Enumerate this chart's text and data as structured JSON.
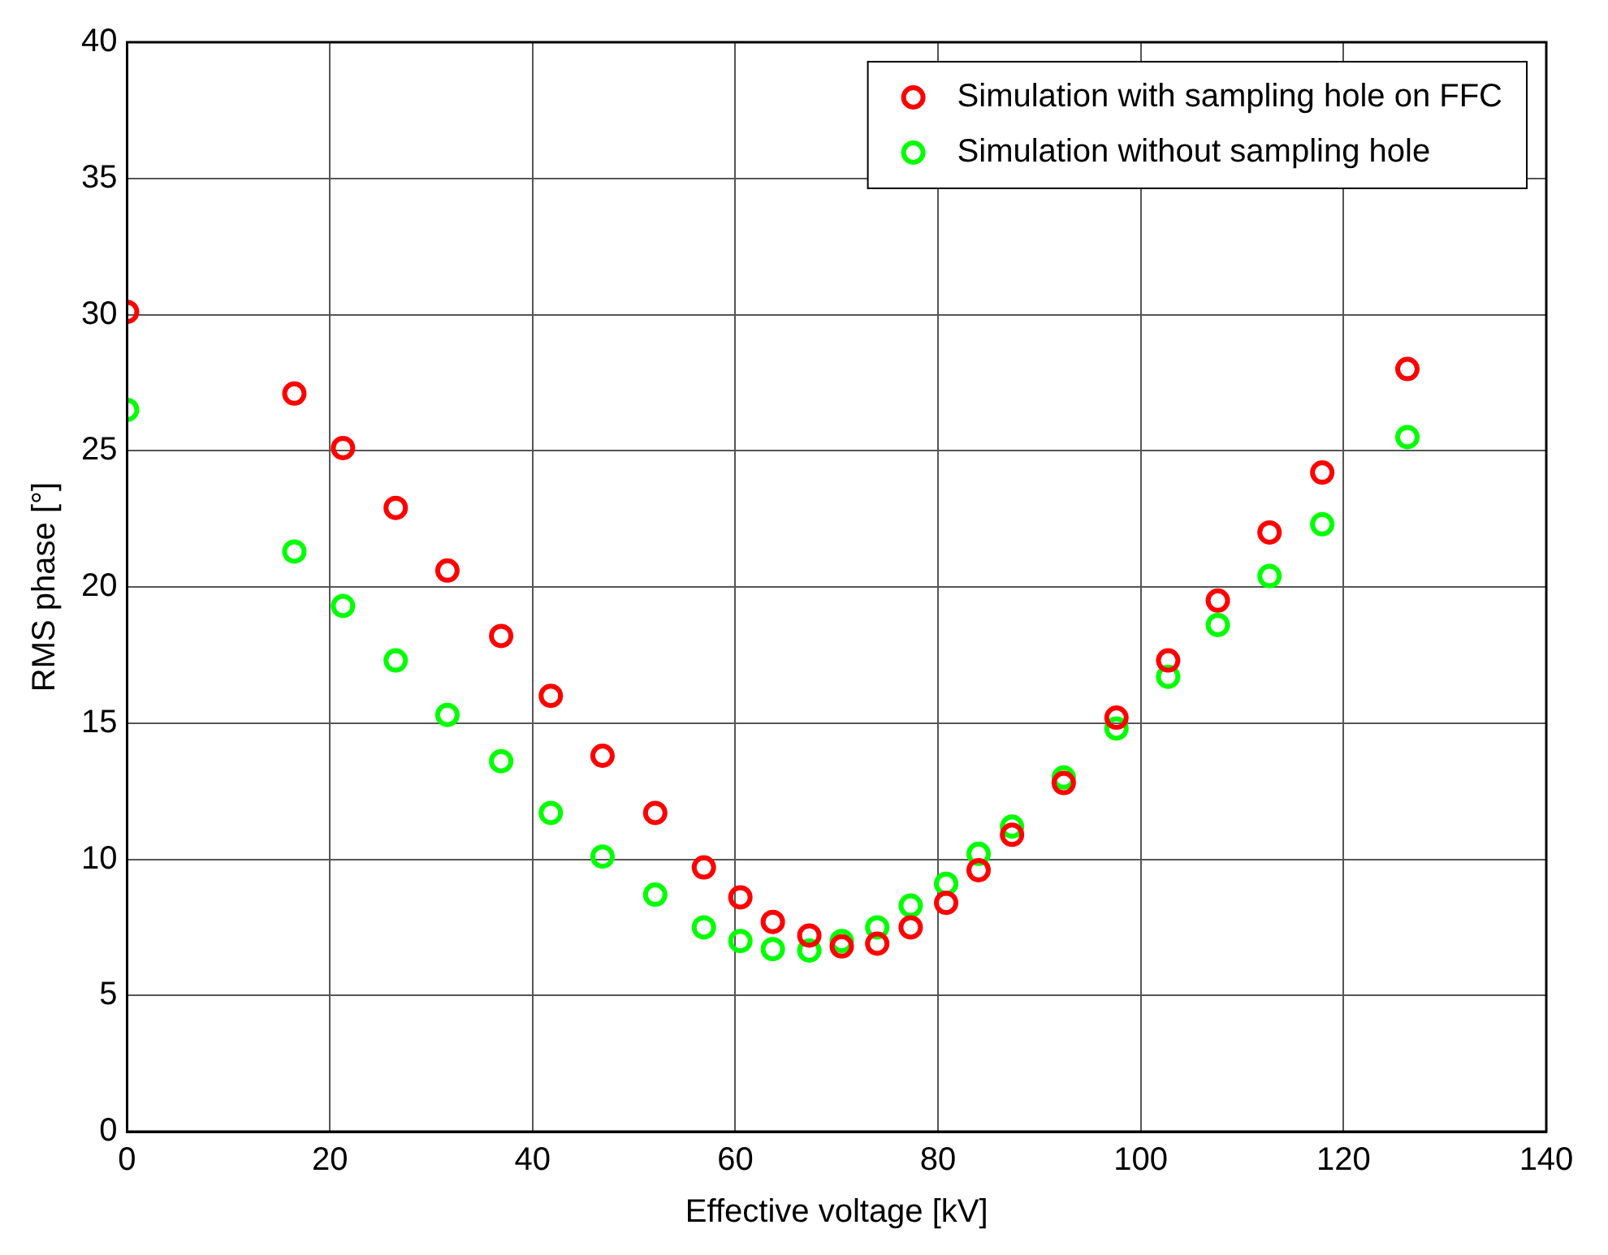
{
  "chart_data": {
    "type": "scatter",
    "xlabel": "Effective voltage [kV]",
    "ylabel": "RMS phase [°]",
    "xlim": [
      0,
      140
    ],
    "xticks": [
      0,
      20,
      40,
      60,
      80,
      100,
      120,
      140
    ],
    "ylim": [
      0,
      40
    ],
    "yticks": [
      0,
      5,
      10,
      15,
      20,
      25,
      30,
      35,
      40
    ],
    "grid": true,
    "legend": "top right",
    "marker": "circle",
    "series": [
      {
        "name": "Simulation with sampling hole on FFC",
        "color": "#ff0000",
        "x": [
          0,
          16.5,
          21.3,
          26.5,
          31.6,
          36.9,
          41.8,
          46.9,
          52.1,
          56.9,
          60.5,
          63.7,
          67.3,
          70.5,
          74.0,
          77.3,
          80.8,
          84.0,
          87.3,
          92.4,
          97.6,
          102.7,
          107.6,
          112.7,
          117.9,
          126.3
        ],
        "values": [
          30.1,
          27.1,
          25.1,
          22.9,
          20.6,
          18.2,
          16.0,
          13.8,
          11.7,
          9.7,
          8.6,
          7.7,
          7.2,
          6.8,
          6.9,
          7.5,
          8.4,
          9.6,
          10.9,
          12.8,
          15.2,
          17.3,
          19.5,
          22.0,
          24.2,
          28.0
        ]
      },
      {
        "name": "Simulation without sampling hole",
        "color": "#00ff00",
        "x": [
          0,
          16.5,
          21.3,
          26.5,
          31.6,
          36.9,
          41.8,
          46.9,
          52.1,
          56.9,
          60.5,
          63.7,
          67.3,
          70.5,
          74.0,
          77.3,
          80.8,
          84.0,
          87.3,
          92.4,
          97.6,
          102.7,
          107.6,
          112.7,
          117.9,
          126.3
        ],
        "values": [
          26.5,
          21.3,
          19.3,
          17.3,
          15.3,
          13.6,
          11.7,
          10.1,
          8.7,
          7.5,
          7.0,
          6.7,
          6.65,
          7.0,
          7.5,
          8.3,
          9.1,
          10.2,
          11.2,
          13.0,
          14.8,
          16.7,
          18.6,
          20.4,
          22.3,
          25.5
        ]
      }
    ]
  }
}
